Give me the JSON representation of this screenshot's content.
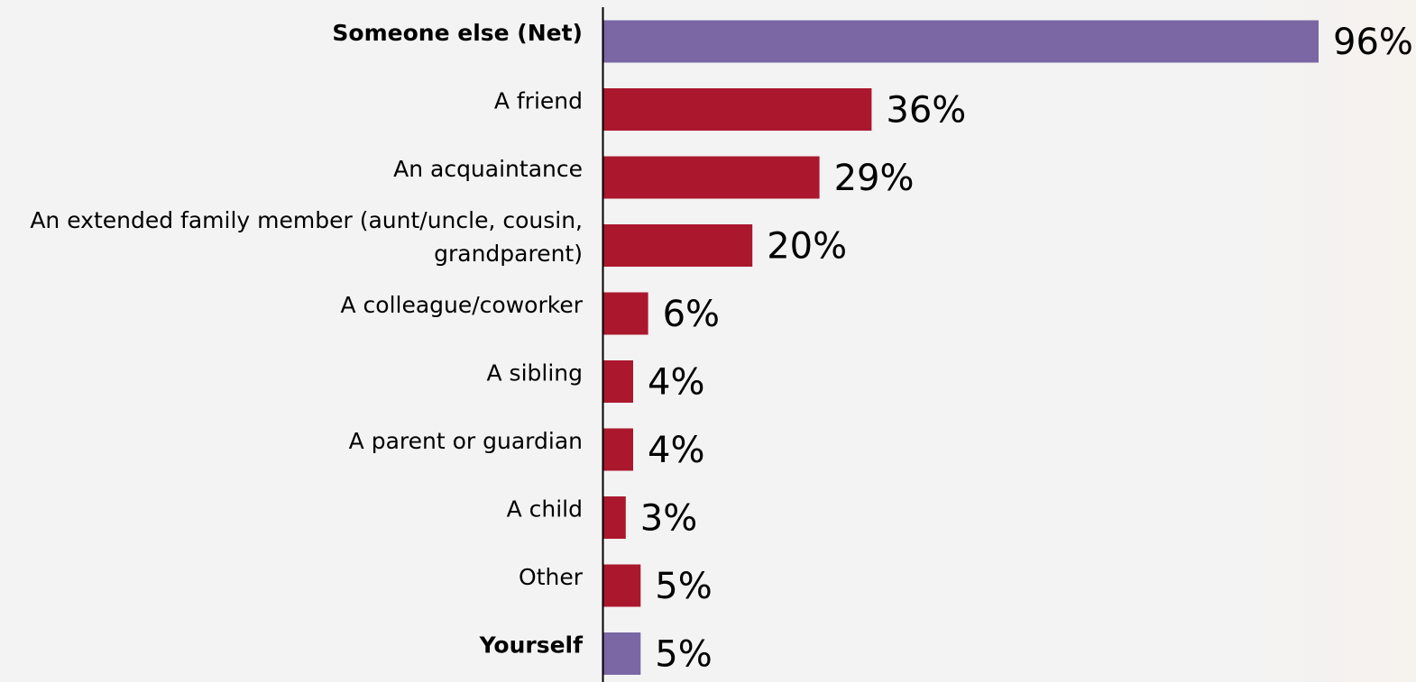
{
  "chart_data": {
    "type": "bar",
    "orientation": "horizontal",
    "categories": [
      "Someone else (Net)",
      "A friend",
      "An acquaintance",
      "An extended family member (aunt/uncle, cousin, grandparent)",
      "A colleague/coworker",
      "A sibling",
      "A parent or guardian",
      "A child",
      "Other",
      "Yourself"
    ],
    "category_lines": [
      [
        "Someone else (Net)"
      ],
      [
        "A friend"
      ],
      [
        "An acquaintance"
      ],
      [
        "An extended family member (aunt/uncle, cousin,",
        "grandparent)"
      ],
      [
        "A colleague/coworker"
      ],
      [
        "A sibling"
      ],
      [
        "A parent or guardian"
      ],
      [
        "A child"
      ],
      [
        "Other"
      ],
      [
        "Yourself"
      ]
    ],
    "values": [
      96,
      36,
      29,
      20,
      6,
      4,
      4,
      3,
      5,
      5
    ],
    "value_labels": [
      "96%",
      "36%",
      "29%",
      "20%",
      "6%",
      "4%",
      "4%",
      "3%",
      "5%",
      "5%"
    ],
    "bold_categories": [
      true,
      false,
      false,
      false,
      false,
      false,
      false,
      false,
      false,
      true
    ],
    "bar_colors": [
      "#7a67a4",
      "#ab172d",
      "#ab172d",
      "#ab172d",
      "#ab172d",
      "#ab172d",
      "#ab172d",
      "#ab172d",
      "#ab172d",
      "#7a67a4"
    ],
    "xlim": [
      0,
      96
    ],
    "grid": false,
    "axis_color": "#000000"
  }
}
